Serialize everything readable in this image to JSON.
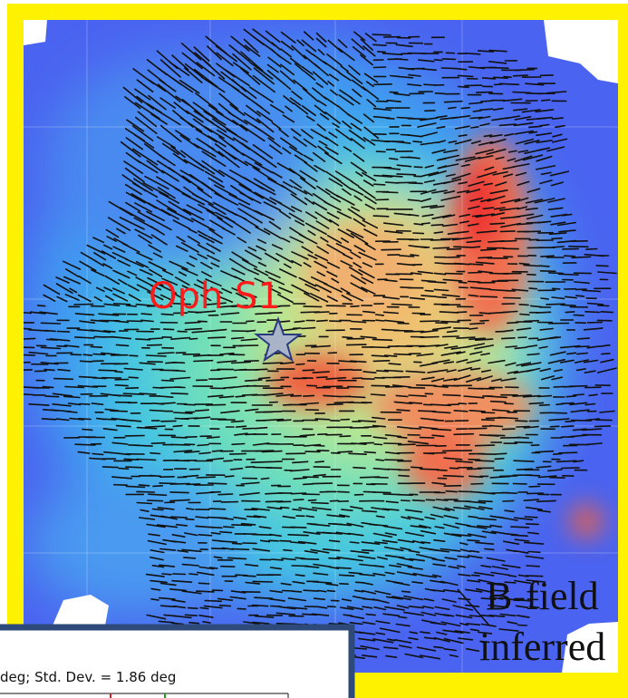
{
  "labels": {
    "source": "Oph S1",
    "bfield_line1": "B-field",
    "bfield_line2": "inferred"
  },
  "inset": {
    "caption": "deg; Std. Dev. = 1.86 deg"
  }
}
